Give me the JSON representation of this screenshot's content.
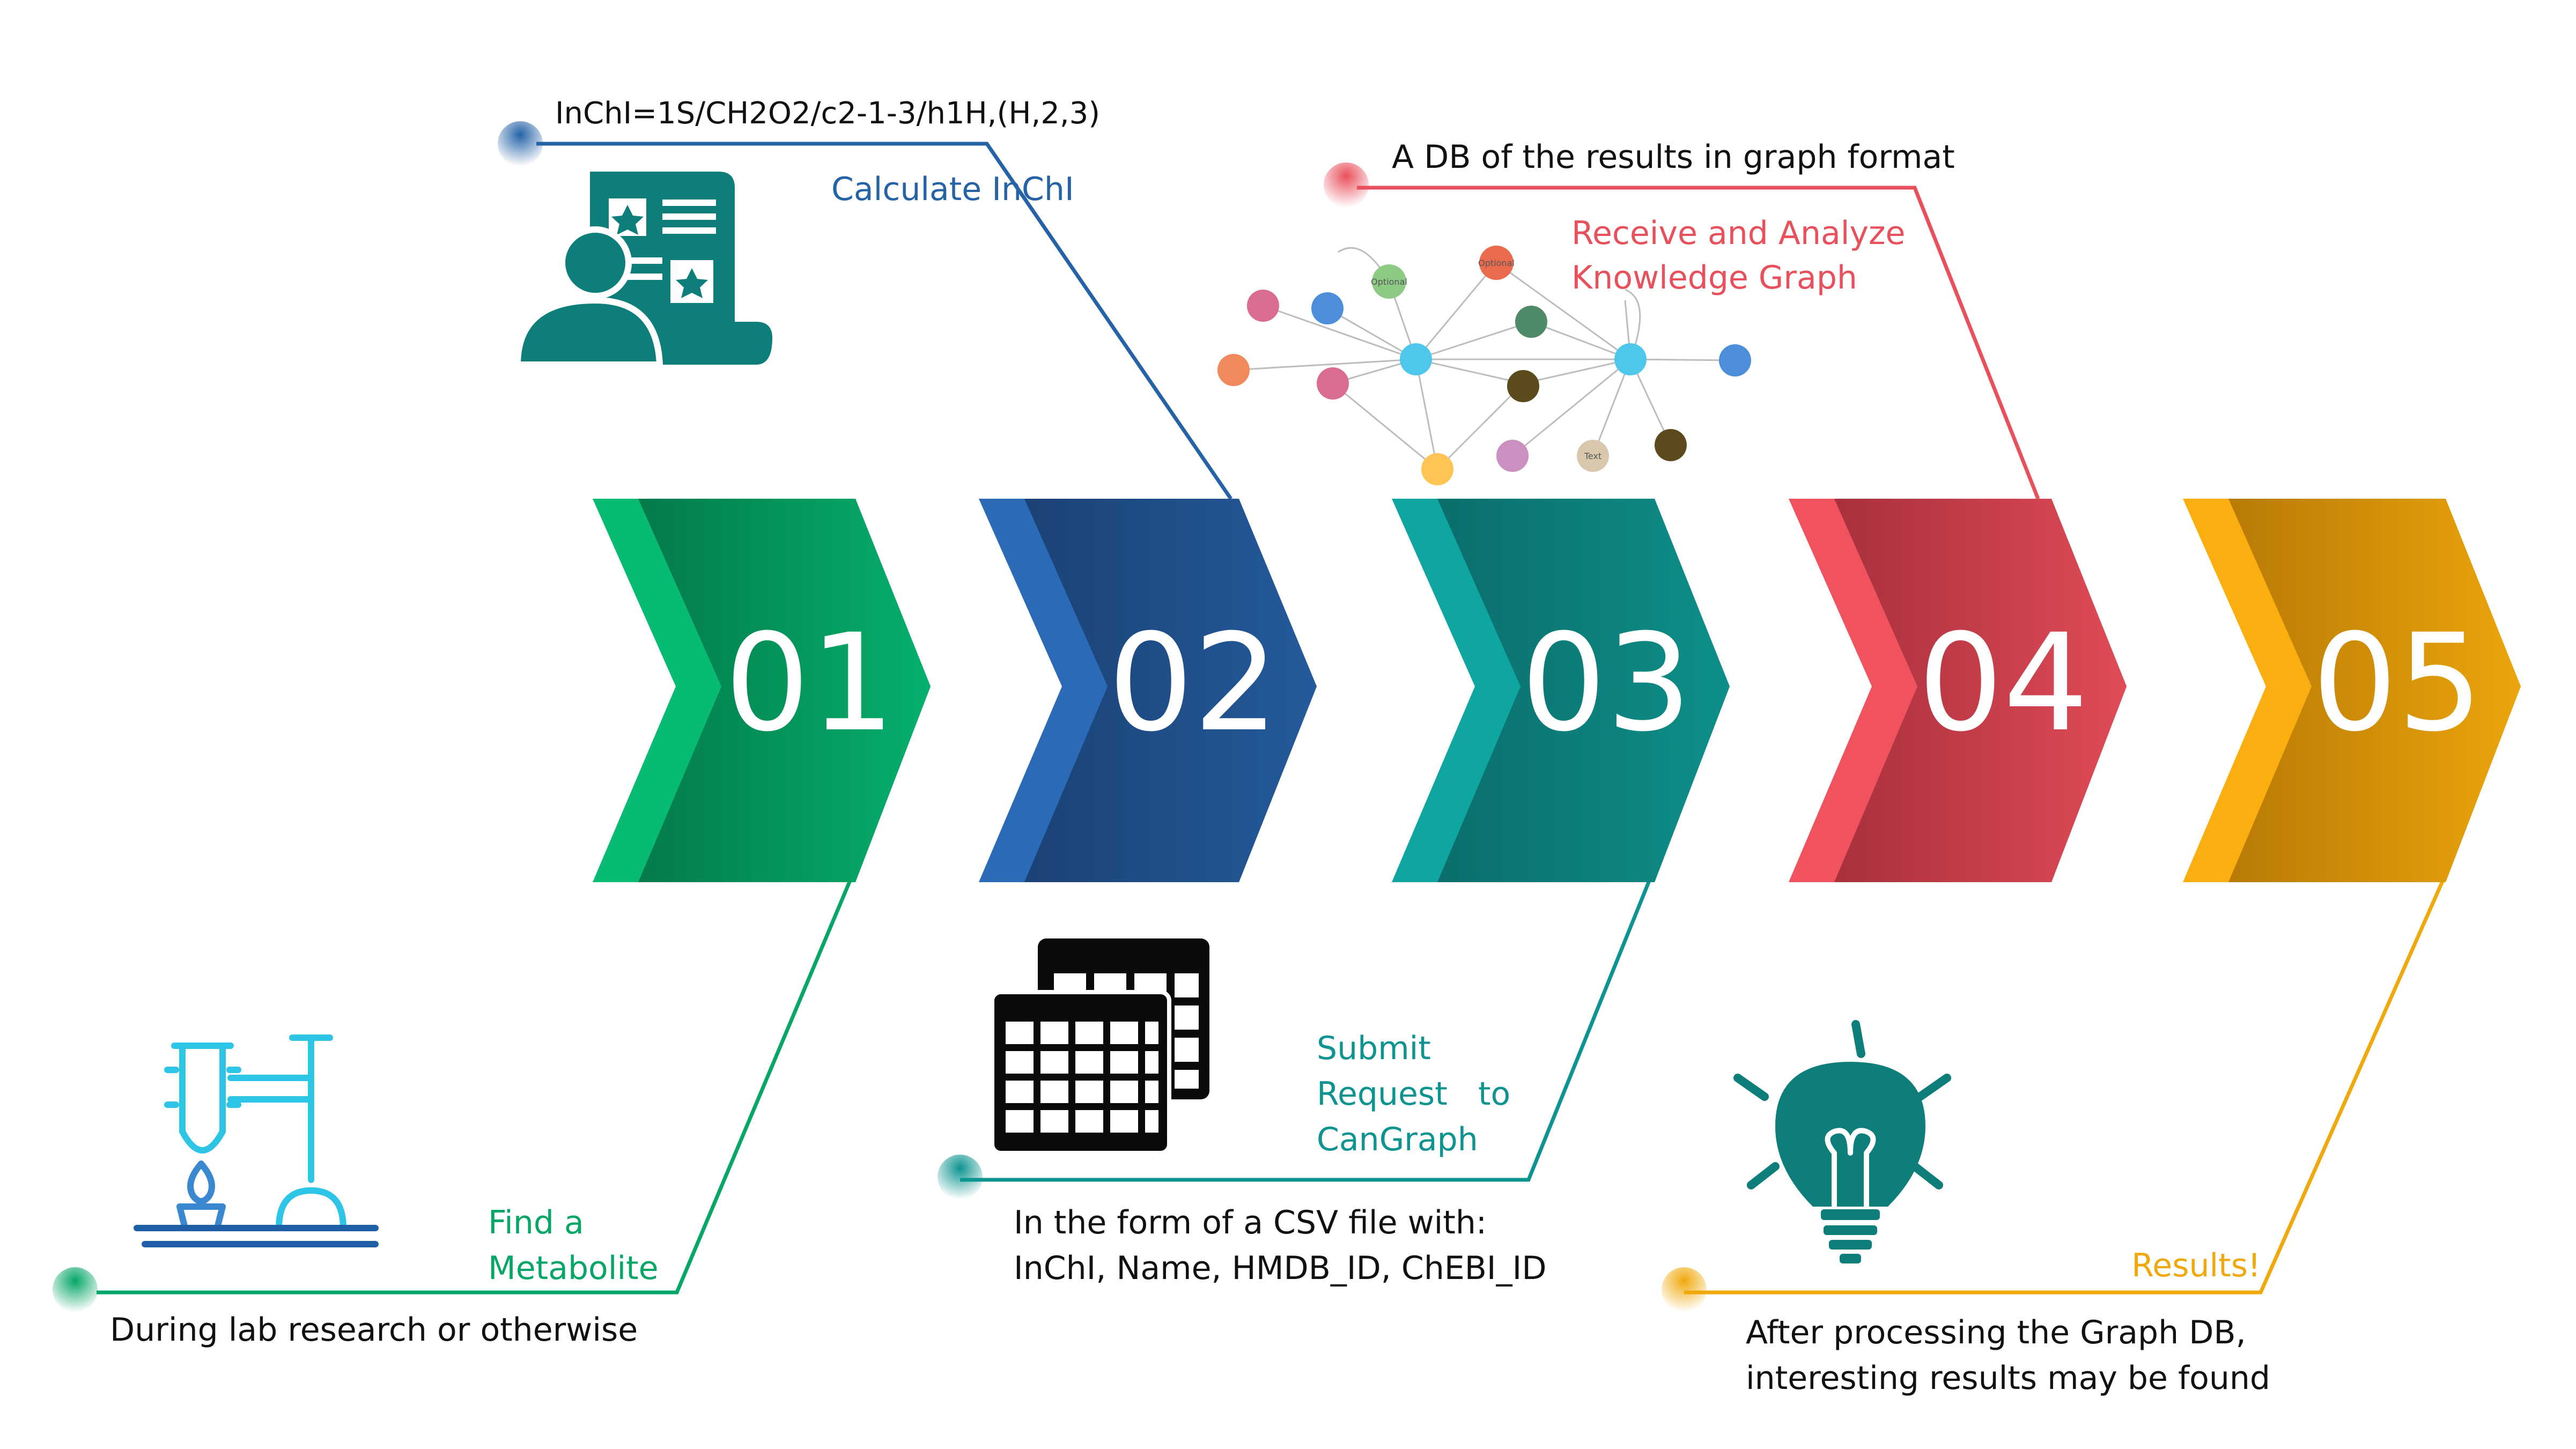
{
  "colors": {
    "green": "#05A667",
    "blue": "#2563A6",
    "teal": "#0E9490",
    "red": "#E8505B",
    "orange": "#F0A90C",
    "dark_text": "#111111",
    "icon_teal": "#0E7E7A",
    "lab_cyan": "#2EC4E6"
  },
  "steps": [
    {
      "number": "01",
      "label_lines": [
        "Find a",
        "Metabolite"
      ],
      "note_lines": [
        "During lab research or otherwise"
      ]
    },
    {
      "number": "02",
      "label_lines": [
        "Calculate InChI"
      ],
      "note_lines": [
        "InChI=1S/CH2O2/c2-1-3/h1H,(H,2,3)"
      ]
    },
    {
      "number": "03",
      "label_lines": [
        "Submit",
        "Request   to",
        "CanGraph"
      ],
      "note_lines": [
        "In the form of a CSV file with:",
        "InChI, Name, HMDB_ID, ChEBI_ID"
      ]
    },
    {
      "number": "04",
      "label_lines": [
        "Receive and Analyze",
        "Knowledge Graph"
      ],
      "note_lines": [
        "A DB of the results in graph format"
      ]
    },
    {
      "number": "05",
      "label_lines": [
        "Results!"
      ],
      "note_lines": [
        "After processing the Graph DB,",
        "interesting results may be found"
      ]
    }
  ],
  "graph_icon": {
    "node_labels": [
      "Optional",
      "Optional",
      "Text"
    ]
  },
  "icons": [
    "lab-burner-icon",
    "report-user-icon",
    "spreadsheet-icon",
    "knowledge-graph-icon",
    "lightbulb-icon"
  ]
}
